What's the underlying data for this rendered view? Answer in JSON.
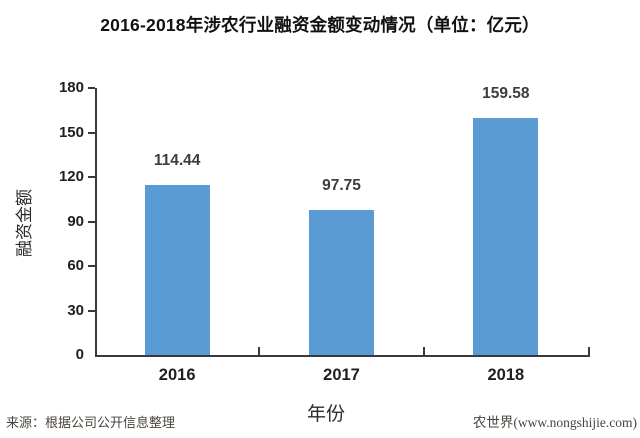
{
  "title": "2016-2018年涉农行业融资金额变动情况（单位：亿元）",
  "chart_data": {
    "type": "bar",
    "categories": [
      "2016",
      "2017",
      "2018"
    ],
    "values": [
      114.44,
      97.75,
      159.58
    ],
    "value_labels": [
      "114.44",
      "97.75",
      "159.58"
    ],
    "title": "2016-2018年涉农行业融资金额变动情况（单位：亿元）",
    "xlabel": "年份",
    "ylabel": "融资金额",
    "ylim": [
      0,
      180
    ],
    "yticks": [
      0,
      30,
      60,
      90,
      120,
      150,
      180
    ],
    "grid": false,
    "legend": "none",
    "bar_color": "#5B9BD5",
    "axis_color": "#3a3a3a"
  },
  "footer": {
    "source": "来源：根据公司公开信息整理",
    "brand": "农世界(www.nongshijie.com)"
  }
}
